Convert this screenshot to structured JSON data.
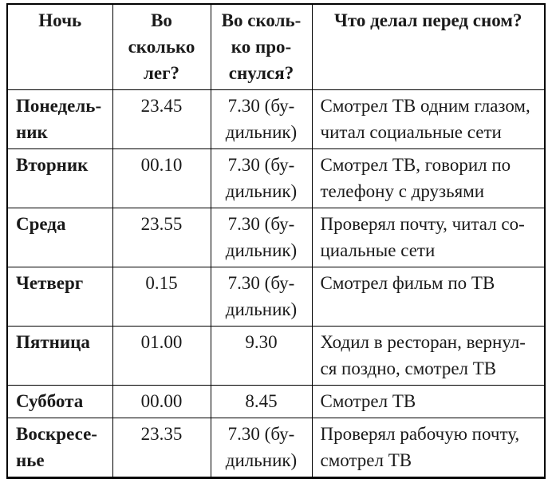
{
  "colors": {
    "background": "#ffffff",
    "text": "#1a1a1a",
    "border": "#000000"
  },
  "table": {
    "headers": {
      "night": "Ночь",
      "bedtime": "Во\nсколько\nлег?",
      "wake": "Во сколь-\nко про-\nснулся?",
      "activity": "Что делал перед сном?"
    },
    "rows": [
      {
        "night": "Понедель-\nник",
        "bedtime": "23.45",
        "wake": "7.30 (бу-\nдильник)",
        "activity": "Смотрел ТВ одним глазом,\nчитал социальные сети"
      },
      {
        "night": "Вторник",
        "bedtime": "00.10",
        "wake": "7.30 (бу-\nдильник)",
        "activity": "Смотрел ТВ, говорил по\nтелефону с друзьями"
      },
      {
        "night": "Среда",
        "bedtime": "23.55",
        "wake": "7.30 (бу-\nдильник)",
        "activity": "Проверял почту, читал со-\nциальные сети"
      },
      {
        "night": "Четверг",
        "bedtime": "0.15",
        "wake": "7.30 (бу-\nдильник)",
        "activity": "Смотрел фильм по ТВ"
      },
      {
        "night": "Пятница",
        "bedtime": "01.00",
        "wake": "9.30",
        "activity": "Ходил в ресторан, вернул-\nся поздно, смотрел ТВ"
      },
      {
        "night": "Суббота",
        "bedtime": "00.00",
        "wake": "8.45",
        "activity": "Смотрел ТВ"
      },
      {
        "night": "Воскресе-\nнье",
        "bedtime": "23.35",
        "wake": "7.30 (бу-\nдильник)",
        "activity": "Проверял рабочую почту,\nсмотрел ТВ"
      }
    ]
  }
}
